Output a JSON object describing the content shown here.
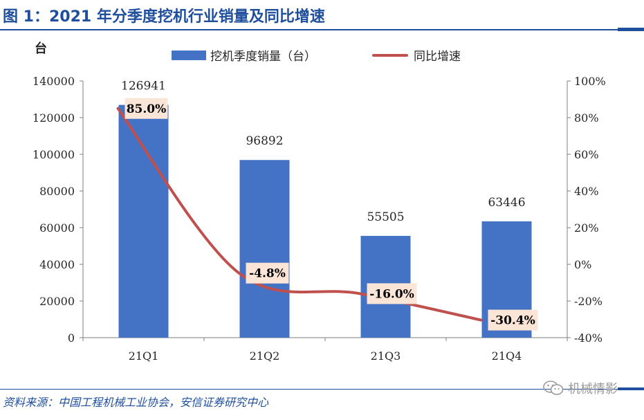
{
  "title": "图 1：2021 年分季度挖机行业销量及同比增速",
  "source": "资料来源：中国工程机械工业协会，安信证券研究中心",
  "watermark": "机械情影",
  "colors": {
    "title": "#1f4e9c",
    "bar": "#4472c4",
    "line": "#c0504d",
    "label_bg": "#fbe5d6"
  },
  "chart_data": {
    "type": "bar+line",
    "left_axis_unit": "台",
    "categories": [
      "21Q1",
      "21Q2",
      "21Q3",
      "21Q4"
    ],
    "series": [
      {
        "name": "挖机季度销量（台）",
        "type": "bar",
        "axis": "left",
        "values": [
          126941,
          96892,
          55505,
          63446
        ],
        "labels": [
          "126941",
          "96892",
          "55505",
          "63446"
        ]
      },
      {
        "name": "同比增速",
        "type": "line",
        "axis": "right",
        "values": [
          85.0,
          -4.8,
          -16.0,
          -30.4
        ],
        "labels": [
          "85.0%",
          "-4.8%",
          "-16.0%",
          "-30.4%"
        ]
      }
    ],
    "left_axis": {
      "ylim": [
        0,
        140000
      ],
      "ticks": [
        "0",
        "20000",
        "40000",
        "60000",
        "80000",
        "100000",
        "120000",
        "140000"
      ]
    },
    "right_axis": {
      "ylim": [
        -40,
        100
      ],
      "ticks": [
        "-40%",
        "-20%",
        "0%",
        "20%",
        "40%",
        "60%",
        "80%",
        "100%"
      ]
    },
    "grid": false,
    "legend_position": "top"
  }
}
